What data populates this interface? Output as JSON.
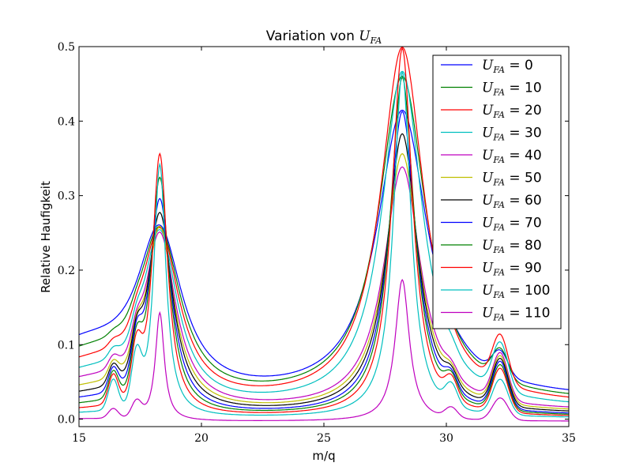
{
  "chart_data": {
    "type": "line",
    "title_prefix": "Variation von ",
    "title_math": "U",
    "title_sub": "FA",
    "xlabel": "m/q",
    "ylabel": "Relative Haufigkeit",
    "xlim": [
      15,
      35
    ],
    "ylim": [
      -0.01,
      0.5
    ],
    "xticks": [
      15,
      20,
      25,
      30,
      35
    ],
    "xtick_labels": [
      "15",
      "20",
      "25",
      "30",
      "35"
    ],
    "yticks": [
      0.0,
      0.1,
      0.2,
      0.3,
      0.4,
      0.5
    ],
    "ytick_labels": [
      "0.0",
      "0.1",
      "0.2",
      "0.3",
      "0.4",
      "0.5"
    ],
    "grid": false,
    "legend_position": "top-right",
    "legend_symbol": "U",
    "legend_sub": "FA",
    "series": [
      {
        "name": "0",
        "value_label": "= 0",
        "color": "#0000ff",
        "base": 0.088,
        "valley": 0.026,
        "pk1": 0.239,
        "pk2": 0.412,
        "pk3": 0.057,
        "r1": 0.0,
        "r2": 0.0
      },
      {
        "name": "10",
        "value_label": "= 10",
        "color": "#008000",
        "base": 0.075,
        "valley": 0.021,
        "pk1": 0.239,
        "pk2": 0.458,
        "pk3": 0.06,
        "r1": 0.004,
        "r2": 0.003
      },
      {
        "name": "20",
        "value_label": "= 20",
        "color": "#ff0000",
        "base": 0.063,
        "valley": 0.017,
        "pk1": 0.24,
        "pk2": 0.497,
        "pk3": 0.08,
        "r1": 0.007,
        "r2": 0.006
      },
      {
        "name": "30",
        "value_label": "= 30",
        "color": "#00bfbf",
        "base": 0.052,
        "valley": 0.013,
        "pk1": 0.24,
        "pk2": 0.465,
        "pk3": 0.076,
        "r1": 0.011,
        "r2": 0.009
      },
      {
        "name": "40",
        "value_label": "= 40",
        "color": "#bf00bf",
        "base": 0.043,
        "valley": 0.01,
        "pk1": 0.24,
        "pk2": 0.337,
        "pk3": 0.072,
        "r1": 0.015,
        "r2": 0.012
      },
      {
        "name": "50",
        "value_label": "= 50",
        "color": "#bfbf00",
        "base": 0.034,
        "valley": 0.008,
        "pk1": 0.25,
        "pk2": 0.355,
        "pk3": 0.07,
        "r1": 0.02,
        "r2": 0.015
      },
      {
        "name": "60",
        "value_label": "= 60",
        "color": "#000000",
        "base": 0.027,
        "valley": 0.006,
        "pk1": 0.27,
        "pk2": 0.382,
        "pk3": 0.068,
        "r1": 0.025,
        "r2": 0.018
      },
      {
        "name": "70",
        "value_label": "= 70",
        "color": "#0000ff",
        "base": 0.021,
        "valley": 0.004,
        "pk1": 0.29,
        "pk2": 0.412,
        "pk3": 0.066,
        "r1": 0.03,
        "r2": 0.021
      },
      {
        "name": "80",
        "value_label": "= 80",
        "color": "#008000",
        "base": 0.015,
        "valley": 0.003,
        "pk1": 0.32,
        "pk2": 0.458,
        "pk3": 0.063,
        "r1": 0.034,
        "r2": 0.024
      },
      {
        "name": "90",
        "value_label": "= 90",
        "color": "#ff0000",
        "base": 0.01,
        "valley": 0.002,
        "pk1": 0.353,
        "pk2": 0.497,
        "pk3": 0.06,
        "r1": 0.038,
        "r2": 0.027
      },
      {
        "name": "100",
        "value_label": "= 100",
        "color": "#00bfbf",
        "base": 0.006,
        "valley": 0.001,
        "pk1": 0.34,
        "pk2": 0.465,
        "pk3": 0.048,
        "r1": 0.04,
        "r2": 0.028
      },
      {
        "name": "110",
        "value_label": "= 110",
        "color": "#bf00bf",
        "base": 0.0,
        "valley": -0.003,
        "pk1": 0.142,
        "pk2": 0.187,
        "pk3": 0.027,
        "r1": 0.013,
        "r2": 0.014
      }
    ]
  }
}
